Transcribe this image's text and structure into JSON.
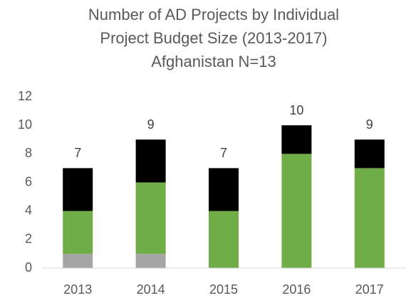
{
  "chart_data": {
    "type": "stacked_bar",
    "title": [
      "Number of AD Projects by Individual",
      "Project Budget Size (2013-2017)",
      "Afghanistan N=13"
    ],
    "categories": [
      "2013",
      "2014",
      "2015",
      "2016",
      "2017"
    ],
    "series": [
      {
        "color": "#a5a5a5",
        "values": [
          1,
          1,
          0,
          0,
          0
        ]
      },
      {
        "color": "#70ad47",
        "values": [
          3,
          5,
          4,
          8,
          7
        ]
      },
      {
        "color": "#000000",
        "values": [
          3,
          3,
          3,
          2,
          2
        ]
      }
    ],
    "totals": [
      7,
      9,
      7,
      10,
      9
    ],
    "ylim": [
      0,
      12
    ],
    "yticks": [
      0,
      2,
      4,
      6,
      8,
      10,
      12
    ],
    "grid": false
  }
}
